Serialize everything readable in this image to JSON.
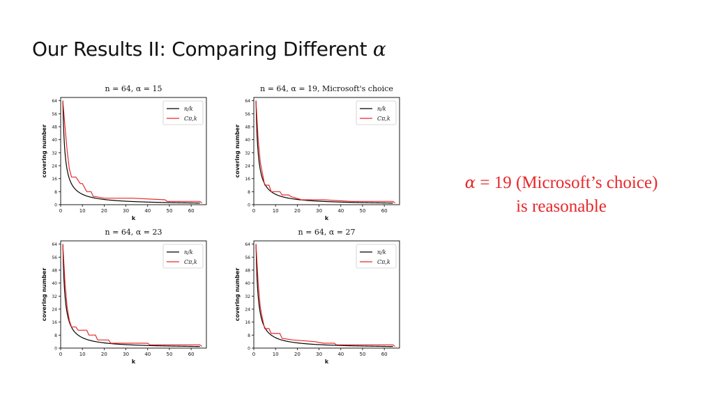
{
  "slide": {
    "title_text": "Our Results II: Comparing Different ",
    "title_alpha": "α",
    "callout_alpha": "α",
    "callout_rest": " = 19 (Microsoft’s choice)",
    "callout_line2": "is reasonable"
  },
  "colors": {
    "n_over_k": "#000000",
    "c_pi_k": "#e8272a",
    "callout": "#e8272a"
  },
  "chart_data": [
    {
      "type": "line",
      "title": "n = 64, α = 15",
      "xlabel": "k",
      "ylabel": "covering number",
      "xlim": [
        0,
        67
      ],
      "ylim": [
        0,
        66
      ],
      "xticks": [
        "0",
        "10",
        "20",
        "30",
        "40",
        "50",
        "60"
      ],
      "yticks": [
        "0",
        "8",
        "16",
        "24",
        "32",
        "40",
        "48",
        "56",
        "64"
      ],
      "legend": {
        "position": "top-right",
        "labels": [
          "n/k",
          "Cπ,k"
        ]
      },
      "series": [
        {
          "name": "n/k",
          "function": "64/k",
          "x_range": [
            1,
            64
          ]
        },
        {
          "name": "Cπ,k",
          "x": [
            1,
            2,
            3,
            4,
            5,
            7,
            9,
            10,
            12,
            14,
            15,
            16,
            20,
            24,
            33,
            48,
            49,
            64,
            65
          ],
          "y": [
            64,
            48,
            33,
            22,
            17,
            17,
            13,
            13,
            8,
            8,
            5,
            5,
            4,
            4,
            4,
            3,
            2,
            2,
            1
          ]
        }
      ]
    },
    {
      "type": "line",
      "title": "n = 64, α = 19, Microsoft's choice",
      "xlabel": "k",
      "ylabel": "covering number",
      "xlim": [
        0,
        67
      ],
      "ylim": [
        0,
        66
      ],
      "xticks": [
        "0",
        "10",
        "20",
        "30",
        "40",
        "50",
        "60"
      ],
      "yticks": [
        "0",
        "8",
        "16",
        "24",
        "32",
        "40",
        "48",
        "56",
        "64"
      ],
      "legend": {
        "position": "top-right",
        "labels": [
          "n/k",
          "Cπ,k"
        ]
      },
      "series": [
        {
          "name": "n/k",
          "function": "64/k",
          "x_range": [
            1,
            64
          ]
        },
        {
          "name": "Cπ,k",
          "x": [
            1,
            2,
            3,
            4,
            5,
            7,
            8,
            12,
            13,
            16,
            17,
            22,
            32,
            45,
            46,
            64,
            65
          ],
          "y": [
            64,
            40,
            26,
            19,
            12,
            12,
            8,
            8,
            6,
            6,
            5,
            3,
            3,
            2,
            2,
            2,
            1
          ]
        }
      ]
    },
    {
      "type": "line",
      "title": "n = 64, α = 23",
      "xlabel": "k",
      "ylabel": "covering number",
      "xlim": [
        0,
        67
      ],
      "ylim": [
        0,
        66
      ],
      "xticks": [
        "0",
        "10",
        "20",
        "30",
        "40",
        "50",
        "60"
      ],
      "yticks": [
        "0",
        "8",
        "16",
        "24",
        "32",
        "40",
        "48",
        "56",
        "64"
      ],
      "legend": {
        "position": "top-right",
        "labels": [
          "n/k",
          "Cπ,k"
        ]
      },
      "series": [
        {
          "name": "n/k",
          "function": "64/k",
          "x_range": [
            1,
            64
          ]
        },
        {
          "name": "Cπ,k",
          "x": [
            1,
            2,
            3,
            4,
            5,
            7,
            8,
            12,
            13,
            16,
            17,
            22,
            23,
            40,
            41,
            64,
            65
          ],
          "y": [
            64,
            40,
            25,
            17,
            13,
            13,
            11,
            11,
            8,
            8,
            5,
            5,
            3,
            3,
            2,
            2,
            1
          ]
        }
      ]
    },
    {
      "type": "line",
      "title": "n = 64, α = 27",
      "xlabel": "k",
      "ylabel": "covering number",
      "xlim": [
        0,
        67
      ],
      "ylim": [
        0,
        66
      ],
      "xticks": [
        "0",
        "10",
        "20",
        "30",
        "40",
        "50",
        "60"
      ],
      "yticks": [
        "0",
        "8",
        "16",
        "24",
        "32",
        "40",
        "48",
        "56",
        "64"
      ],
      "legend": {
        "position": "top-right",
        "labels": [
          "n/k",
          "Cπ,k"
        ]
      },
      "series": [
        {
          "name": "n/k",
          "function": "64/k",
          "x_range": [
            1,
            64
          ]
        },
        {
          "name": "Cπ,k",
          "x": [
            1,
            2,
            3,
            4,
            5,
            7,
            8,
            12,
            13,
            18,
            28,
            32,
            37,
            38,
            64,
            65
          ],
          "y": [
            64,
            40,
            25,
            18,
            12,
            12,
            9,
            9,
            6,
            5,
            4,
            3,
            3,
            2,
            2,
            1
          ]
        }
      ]
    }
  ]
}
